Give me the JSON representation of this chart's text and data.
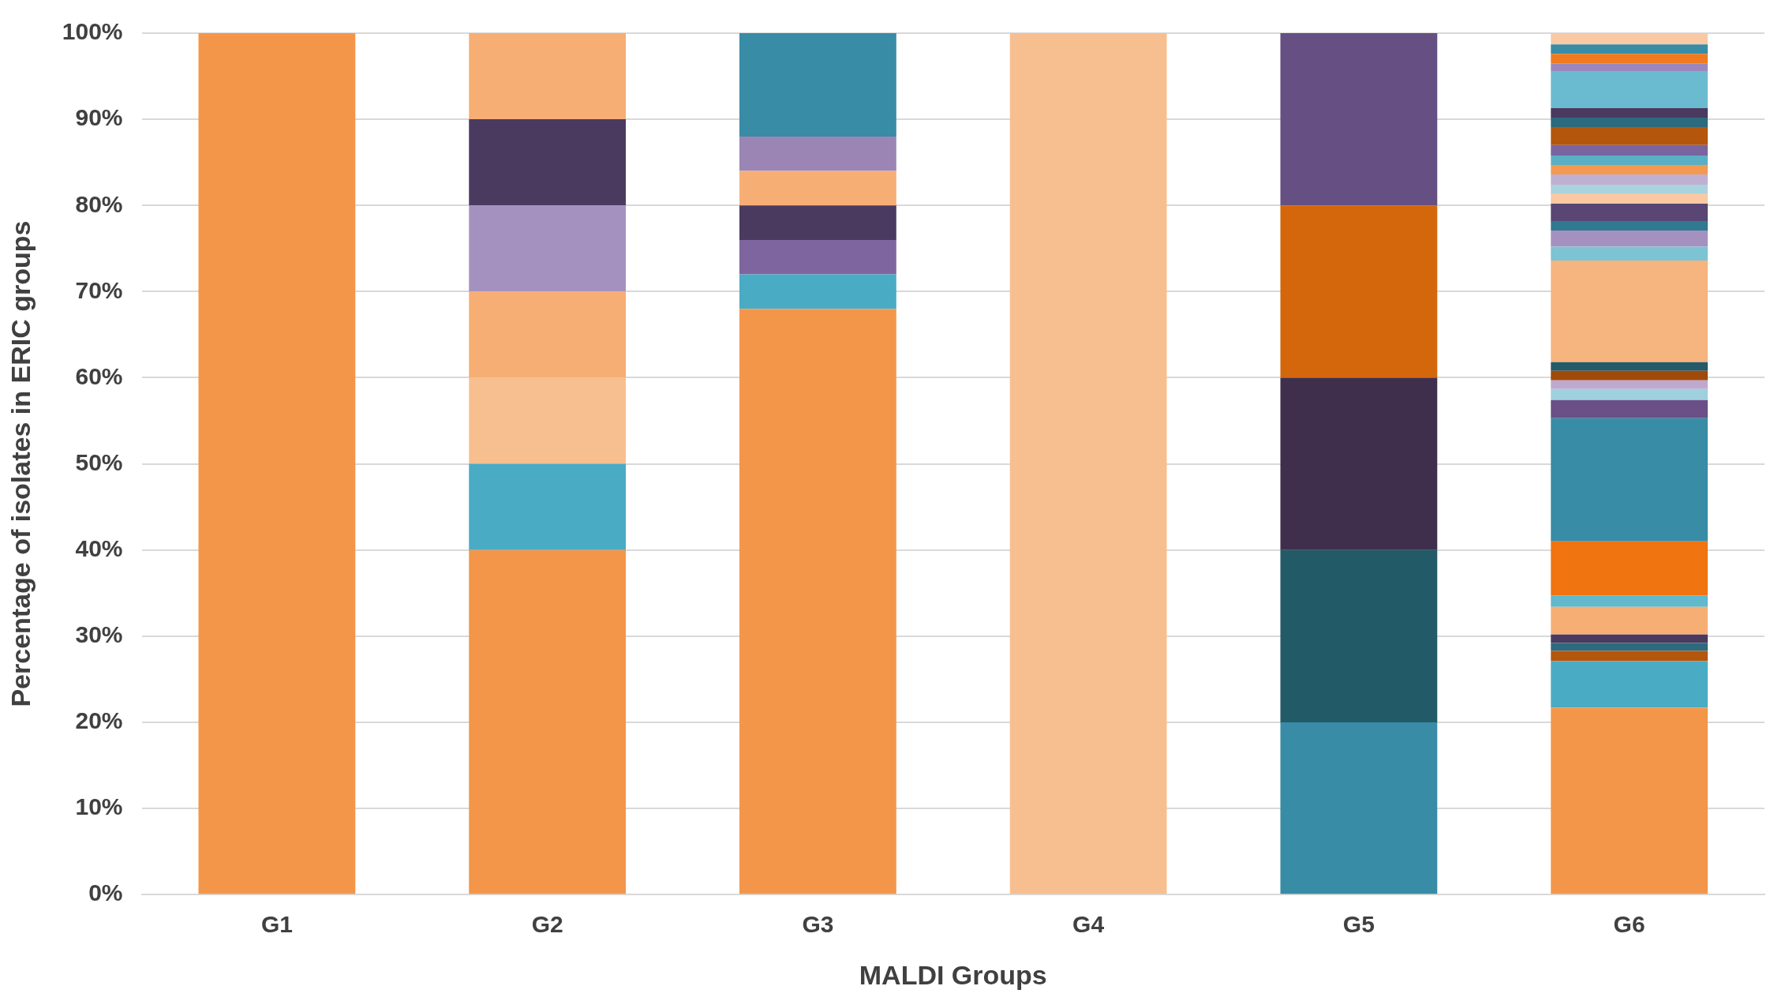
{
  "chart_data": {
    "type": "bar",
    "stacked": true,
    "xlabel": "MALDI Groups",
    "ylabel": "Percentage of isolates in ERIC groups",
    "categories": [
      "G1",
      "G2",
      "G3",
      "G4",
      "G5",
      "G6"
    ],
    "ylim": [
      0,
      100
    ],
    "yticks": [
      {
        "value": 0,
        "label": "0%"
      },
      {
        "value": 10,
        "label": "10%"
      },
      {
        "value": 20,
        "label": "20%"
      },
      {
        "value": 30,
        "label": "30%"
      },
      {
        "value": 40,
        "label": "40%"
      },
      {
        "value": 50,
        "label": "50%"
      },
      {
        "value": 60,
        "label": "60%"
      },
      {
        "value": 70,
        "label": "70%"
      },
      {
        "value": 80,
        "label": "80%"
      },
      {
        "value": 90,
        "label": "90%"
      },
      {
        "value": 100,
        "label": "100%"
      }
    ],
    "grid": "y",
    "legend": false,
    "series": [
      {
        "values": [
          100,
          40,
          68,
          100,
          20,
          21.7
        ],
        "colors": [
          "#f4964a",
          "#f4964a",
          "#f4964a",
          "#f7bf8f",
          "#388ca6",
          "#f4964a"
        ]
      },
      {
        "values": [
          null,
          10,
          4,
          null,
          20,
          5.4
        ],
        "colors": [
          null,
          "#4aabc4",
          "#4aabc4",
          null,
          "#235a68",
          "#4aabc4"
        ]
      },
      {
        "values": [
          null,
          10,
          4,
          null,
          20,
          1.2
        ],
        "colors": [
          null,
          "#f7bf8f",
          "#7f65a0",
          null,
          "#3f2f4d",
          "#b5560d"
        ]
      },
      {
        "values": [
          null,
          10,
          4,
          null,
          20,
          0.9
        ],
        "colors": [
          null,
          "#f6ae74",
          "#4b3a60",
          null,
          "#d4660b",
          "#2d6a7e"
        ]
      },
      {
        "values": [
          null,
          10,
          4,
          null,
          20,
          1.0
        ],
        "colors": [
          null,
          "#a591bf",
          "#f6ae74",
          null,
          "#654f83",
          "#4b3a60"
        ]
      },
      {
        "values": [
          null,
          10,
          4,
          null,
          null,
          3.2
        ],
        "colors": [
          null,
          "#4b3a60",
          "#9b85b5",
          null,
          null,
          "#f6ae74"
        ]
      },
      {
        "values": [
          null,
          10,
          12,
          null,
          null,
          1.3
        ],
        "colors": [
          null,
          "#f6ae74",
          "#388ca6",
          null,
          null,
          "#62b8cc"
        ]
      },
      {
        "values": [
          null,
          null,
          null,
          null,
          null,
          6.3
        ],
        "color": "#f07410"
      },
      {
        "values": [
          null,
          null,
          null,
          null,
          null,
          14.3
        ],
        "color": "#388ca6"
      },
      {
        "values": [
          null,
          null,
          null,
          null,
          null,
          2.1
        ],
        "color": "#6a5087"
      },
      {
        "values": [
          null,
          null,
          null,
          null,
          null,
          1.3
        ],
        "color": "#9fd0de"
      },
      {
        "values": [
          null,
          null,
          null,
          null,
          null,
          1.0
        ],
        "color": "#c0a9cf"
      },
      {
        "values": [
          null,
          null,
          null,
          null,
          null,
          1.1
        ],
        "color": "#a04a0a"
      },
      {
        "values": [
          null,
          null,
          null,
          null,
          null,
          1.0
        ],
        "color": "#255a68"
      },
      {
        "values": [
          null,
          null,
          null,
          null,
          null,
          11.8
        ],
        "color": "#f6b47e"
      },
      {
        "values": [
          null,
          null,
          null,
          null,
          null,
          1.6
        ],
        "color": "#7cc3d3"
      },
      {
        "values": [
          null,
          null,
          null,
          null,
          null,
          1.9
        ],
        "color": "#a591bf"
      },
      {
        "values": [
          null,
          null,
          null,
          null,
          null,
          1.1
        ],
        "color": "#2f7a90"
      },
      {
        "values": [
          null,
          null,
          null,
          null,
          null,
          2.0
        ],
        "color": "#5a4674"
      },
      {
        "values": [
          null,
          null,
          null,
          null,
          null,
          1.2
        ],
        "color": "#f8c9a3"
      },
      {
        "values": [
          null,
          null,
          null,
          null,
          null,
          1.0
        ],
        "color": "#a9d3de"
      },
      {
        "values": [
          null,
          null,
          null,
          null,
          null,
          1.2
        ],
        "color": "#bfb0d2"
      },
      {
        "values": [
          null,
          null,
          null,
          null,
          null,
          1.1
        ],
        "color": "#f49a50"
      },
      {
        "values": [
          null,
          null,
          null,
          null,
          null,
          1.1
        ],
        "color": "#5aafc4"
      },
      {
        "values": [
          null,
          null,
          null,
          null,
          null,
          1.2
        ],
        "color": "#7a64a0"
      },
      {
        "values": [
          null,
          null,
          null,
          null,
          null,
          2.1
        ],
        "color": "#b5560d"
      },
      {
        "values": [
          null,
          null,
          null,
          null,
          null,
          1.1
        ],
        "color": "#2d6a7e"
      },
      {
        "values": [
          null,
          null,
          null,
          null,
          null,
          1.1
        ],
        "color": "#4b3a60"
      },
      {
        "values": [
          null,
          null,
          null,
          null,
          null,
          4.3
        ],
        "color": "#6bbbd0"
      },
      {
        "values": [
          null,
          null,
          null,
          null,
          null,
          0.9
        ],
        "color": "#9c87bd"
      },
      {
        "values": [
          null,
          null,
          null,
          null,
          null,
          1.1
        ],
        "color": "#f07a20"
      },
      {
        "values": [
          null,
          null,
          null,
          null,
          null,
          1.1
        ],
        "color": "#388ca6"
      },
      {
        "values": [
          null,
          null,
          null,
          null,
          null,
          1.3
        ],
        "color": "#f8c9a3"
      }
    ]
  }
}
